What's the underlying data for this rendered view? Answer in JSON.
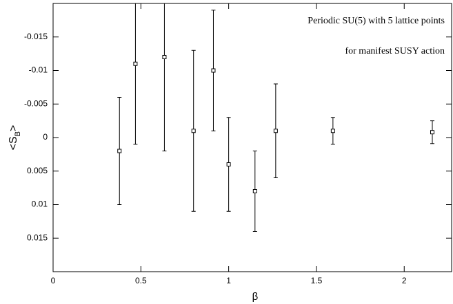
{
  "chart_data": {
    "type": "errorbar",
    "annotations": [
      "Periodic SU(5) with 5 lattice points",
      "for manifest SUSY action"
    ],
    "xlabel": "β",
    "ylabel": [
      "<S",
      "B",
      ">"
    ],
    "x": [
      0.378,
      0.469,
      0.634,
      0.8,
      0.913,
      1.0,
      1.15,
      1.268,
      1.594,
      2.16
    ],
    "values": [
      0.002,
      -0.011,
      -0.012,
      -0.001,
      -0.01,
      0.004,
      0.008,
      -0.001,
      -0.001,
      -0.0008
    ],
    "errors": [
      0.008,
      0.012,
      0.014,
      0.012,
      0.009,
      0.007,
      0.006,
      0.007,
      0.002,
      0.0017
    ],
    "color": "#000000",
    "xlim": [
      0,
      2.27
    ],
    "xticks": [
      0,
      0.5,
      1,
      1.5,
      2
    ],
    "ylim": [
      -0.02,
      0.02
    ],
    "yticks": [
      -0.015,
      -0.01,
      -0.005,
      0,
      0.005,
      0.01,
      0.015
    ],
    "y_inverted": true
  }
}
